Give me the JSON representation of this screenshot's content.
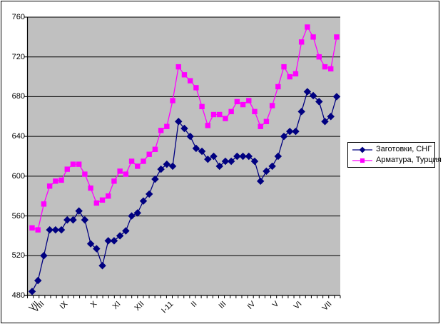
{
  "chart_data": {
    "type": "line",
    "title": "",
    "xlabel": "",
    "ylabel": "",
    "plot_bg": "#C0C0C0",
    "grid_color": "#000000",
    "grid": true,
    "legend_position": "right",
    "y_axis": {
      "min": 480,
      "max": 760,
      "step": 40,
      "ticks": [
        760,
        720,
        680,
        640,
        600,
        560,
        520,
        480
      ]
    },
    "x_labels": [
      {
        "label": "VII",
        "index": 0
      },
      {
        "label": "VIII",
        "index": 1
      },
      {
        "label": "IX",
        "index": 5
      },
      {
        "label": "X",
        "index": 10
      },
      {
        "label": "XI",
        "index": 14
      },
      {
        "label": "XII",
        "index": 18
      },
      {
        "label": "I-11",
        "index": 23
      },
      {
        "label": "II",
        "index": 27
      },
      {
        "label": "III",
        "index": 32
      },
      {
        "label": "IV",
        "index": 37
      },
      {
        "label": "V",
        "index": 41
      },
      {
        "label": "VI",
        "index": 45
      },
      {
        "label": "VII",
        "index": 50
      }
    ],
    "series": [
      {
        "name": "Заготовки, СНГ",
        "color": "#000080",
        "marker": "diamond",
        "values": [
          484,
          495,
          520,
          546,
          546,
          546,
          556,
          556,
          565,
          556,
          532,
          527,
          510,
          535,
          535,
          540,
          545,
          560,
          563,
          575,
          582,
          597,
          607,
          612,
          610,
          655,
          648,
          640,
          628,
          625,
          617,
          620,
          610,
          615,
          615,
          620,
          620,
          620,
          615,
          595,
          605,
          610,
          620,
          640,
          645,
          645,
          665,
          685,
          681,
          675,
          655,
          660,
          680
        ]
      },
      {
        "name": "Арматура, Турция",
        "color": "#FF00FF",
        "marker": "square",
        "values": [
          548,
          546,
          572,
          590,
          595,
          596,
          607,
          612,
          612,
          602,
          588,
          573,
          576,
          580,
          595,
          605,
          602,
          615,
          610,
          615,
          622,
          627,
          646,
          650,
          676,
          710,
          702,
          696,
          689,
          670,
          651,
          662,
          662,
          658,
          665,
          675,
          672,
          676,
          665,
          650,
          655,
          671,
          690,
          710,
          700,
          703,
          735,
          750,
          740,
          720,
          710,
          708,
          740
        ]
      }
    ]
  }
}
